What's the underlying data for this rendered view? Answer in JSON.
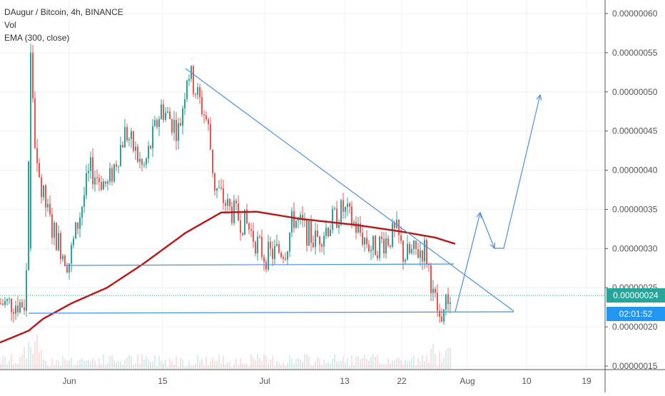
{
  "chart_data": {
    "type": "candlestick",
    "header": {
      "symbol_line": "DAugur / Bitcoin, 4h, BINANCE",
      "indicator_vol": "Vol",
      "indicator_ema": "EMA (300, close)"
    },
    "y_axis": {
      "range": [
        1.5e-07,
        6.2e-07
      ],
      "ticks": [
        "0.00000015",
        "0.00000020",
        "0.00000025",
        "0.00000030",
        "0.00000035",
        "0.00000040",
        "0.00000045",
        "0.00000050",
        "0.00000055",
        "0.00000060"
      ],
      "tick_values": [
        1.5e-07,
        2e-07,
        2.5e-07,
        3e-07,
        3.5e-07,
        4e-07,
        4.5e-07,
        5e-07,
        5.5e-07,
        6e-07
      ]
    },
    "x_axis": {
      "labels": [
        "Jun",
        "15",
        "Jul",
        "13",
        "22",
        "Aug",
        "10",
        "19"
      ]
    },
    "current_price": {
      "value": "0.00000024",
      "countdown": "02:01:52",
      "color": "#26a69a",
      "countdown_color": "#2196f3"
    },
    "series_close_keypoints": [
      {
        "x": 0,
        "y": 2.3e-07
      },
      {
        "x": 35,
        "y": 2.3e-07
      },
      {
        "x": 42,
        "y": 5.5e-07
      },
      {
        "x": 50,
        "y": 4e-07
      },
      {
        "x": 70,
        "y": 3.3e-07
      },
      {
        "x": 95,
        "y": 2.8e-07
      },
      {
        "x": 125,
        "y": 4e-07
      },
      {
        "x": 150,
        "y": 3.8e-07
      },
      {
        "x": 175,
        "y": 4.5e-07
      },
      {
        "x": 200,
        "y": 4e-07
      },
      {
        "x": 225,
        "y": 4.8e-07
      },
      {
        "x": 250,
        "y": 4.5e-07
      },
      {
        "x": 262,
        "y": 5.3e-07
      },
      {
        "x": 290,
        "y": 4.6e-07
      },
      {
        "x": 300,
        "y": 3.8e-07
      },
      {
        "x": 320,
        "y": 3.5e-07
      },
      {
        "x": 345,
        "y": 3.3e-07
      },
      {
        "x": 370,
        "y": 2.9e-07
      },
      {
        "x": 400,
        "y": 3e-07
      },
      {
        "x": 410,
        "y": 3.4e-07
      },
      {
        "x": 440,
        "y": 3.1e-07
      },
      {
        "x": 480,
        "y": 3.5e-07
      },
      {
        "x": 520,
        "y": 3e-07
      },
      {
        "x": 555,
        "y": 3.2e-07
      },
      {
        "x": 565,
        "y": 2.9e-07
      },
      {
        "x": 595,
        "y": 3e-07
      },
      {
        "x": 605,
        "y": 2.5e-07
      },
      {
        "x": 615,
        "y": 2.1e-07
      },
      {
        "x": 630,
        "y": 2.4e-07
      }
    ],
    "ema_keypoints": [
      {
        "x": 0,
        "y": 1.8e-07
      },
      {
        "x": 40,
        "y": 1.95e-07
      },
      {
        "x": 60,
        "y": 2.1e-07
      },
      {
        "x": 100,
        "y": 2.3e-07
      },
      {
        "x": 150,
        "y": 2.5e-07
      },
      {
        "x": 200,
        "y": 2.8e-07
      },
      {
        "x": 260,
        "y": 3.2e-07
      },
      {
        "x": 310,
        "y": 3.46e-07
      },
      {
        "x": 360,
        "y": 3.47e-07
      },
      {
        "x": 420,
        "y": 3.38e-07
      },
      {
        "x": 500,
        "y": 3.3e-07
      },
      {
        "x": 560,
        "y": 3.22e-07
      },
      {
        "x": 610,
        "y": 3.14e-07
      },
      {
        "x": 638,
        "y": 3.06e-07
      }
    ],
    "colors": {
      "up": "#26a69a",
      "down": "#ef5350",
      "ema": "#b71c1c",
      "drawing": "#4a90e2",
      "grid": "#eef1f5"
    },
    "grid": true
  }
}
